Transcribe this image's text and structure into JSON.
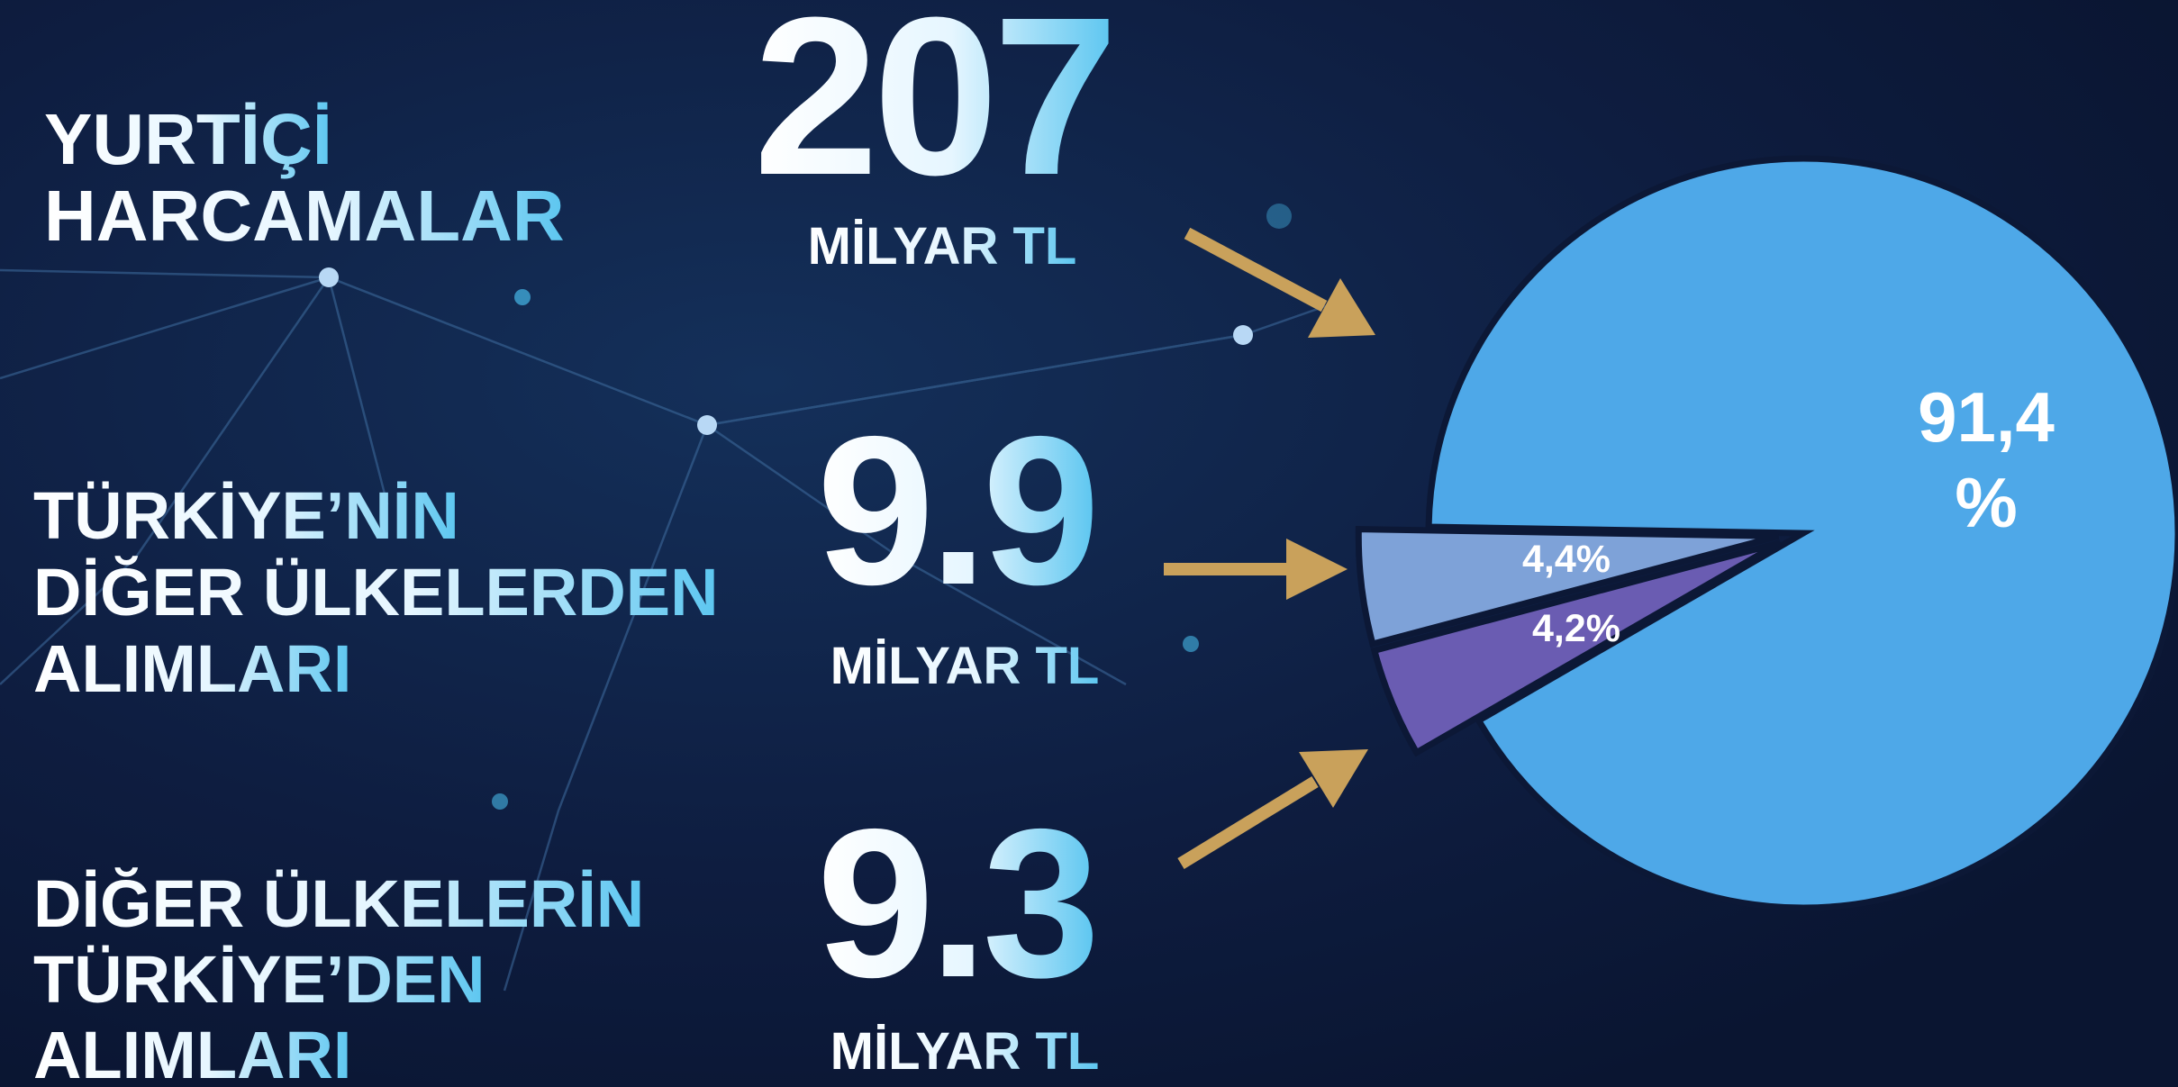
{
  "chart_data": {
    "type": "pie",
    "values": [
      91.4,
      4.4,
      4.2
    ],
    "value_labels": [
      "91,4 %",
      "4,4%",
      "4,2%"
    ],
    "colors": [
      "#4ea8e8",
      "#7ea2d8",
      "#6a5cb2"
    ]
  },
  "items": [
    {
      "lines": [
        "YURTİÇİ",
        "HARCAMALAR"
      ],
      "amount": 207,
      "unit": "MİLYAR TL"
    },
    {
      "lines": [
        "TÜRKİYE’NİN",
        "DİĞER ÜLKELERDEN",
        "ALIMLARI"
      ],
      "amount": 9.9,
      "unit": "MİLYAR TL"
    },
    {
      "lines": [
        "DİĞER ÜLKELERİN",
        "TÜRKİYE’DEN",
        "ALIMLARI"
      ],
      "amount": 9.3,
      "unit": "MİLYAR TL"
    }
  ]
}
